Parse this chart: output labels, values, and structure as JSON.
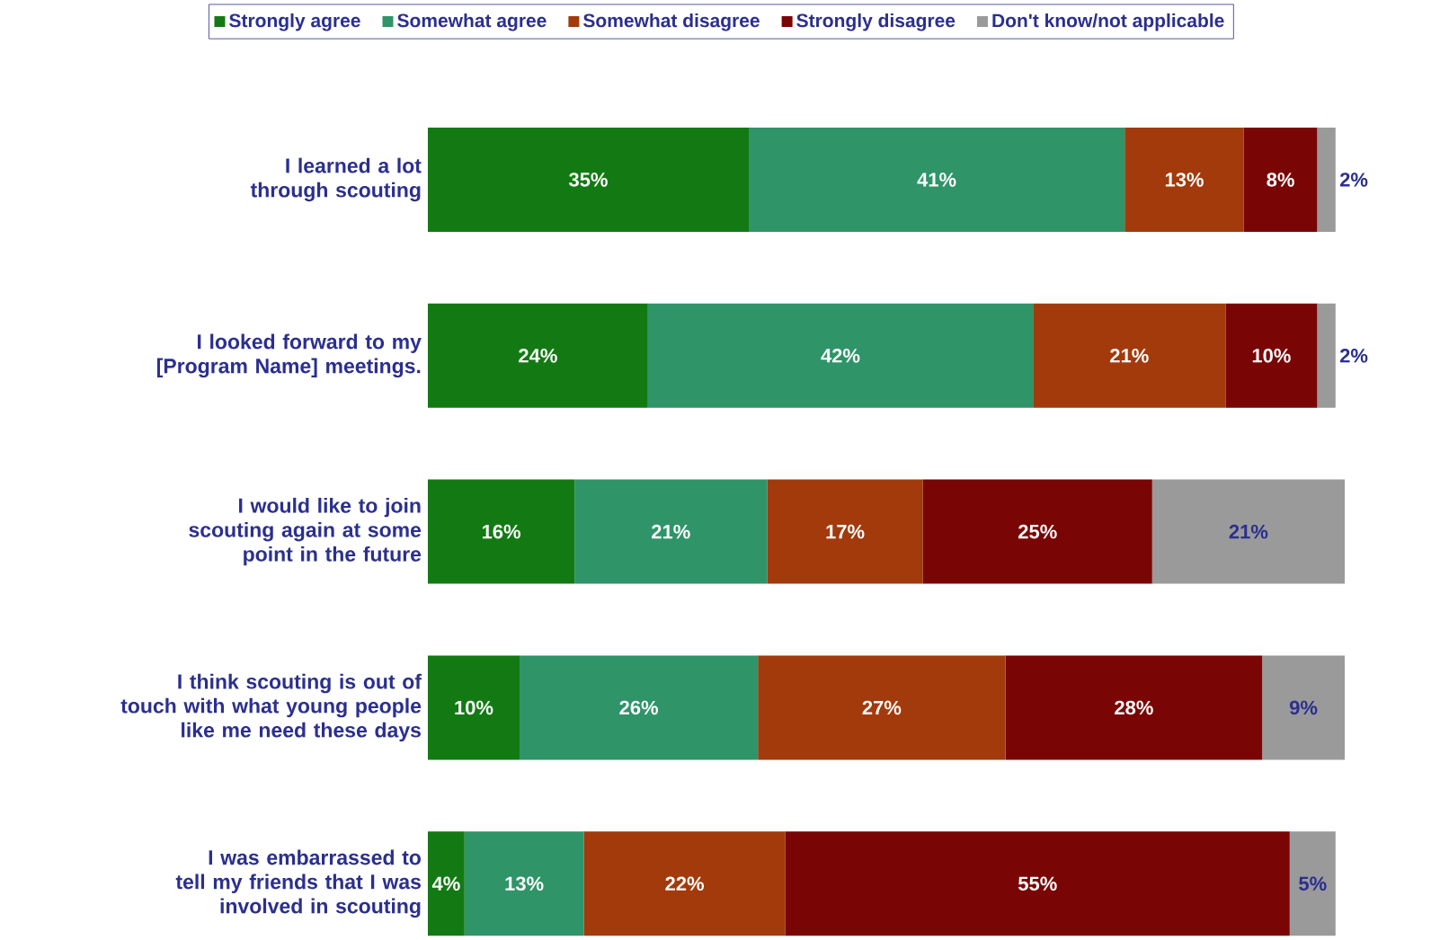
{
  "chart_data": {
    "type": "bar",
    "orientation": "horizontal",
    "stacked": true,
    "legend": "top",
    "categories": [
      "I learned a lot through scouting",
      "I looked forward to my [Program Name] meetings.",
      "I would like to join scouting again at some point in the future",
      "I think scouting is out of touch with what young people like me need these days",
      "I was embarrassed to tell my friends that I was involved in scouting"
    ],
    "series": [
      {
        "name": "Strongly agree",
        "color": "#137a13",
        "values": [
          35,
          24,
          16,
          10,
          4
        ],
        "value_labels": [
          "35%",
          "24%",
          "16%",
          "10%",
          "4%"
        ]
      },
      {
        "name": "Somewhat agree",
        "color": "#2f9468",
        "values": [
          41,
          42,
          21,
          26,
          13
        ],
        "value_labels": [
          "41%",
          "42%",
          "21%",
          "26%",
          "13%"
        ]
      },
      {
        "name": "Somewhat disagree",
        "color": "#a33a0b",
        "values": [
          13,
          21,
          17,
          27,
          22
        ],
        "value_labels": [
          "13%",
          "21%",
          "17%",
          "27%",
          "22%"
        ]
      },
      {
        "name": "Strongly disagree",
        "color": "#7a0505",
        "values": [
          8,
          10,
          25,
          28,
          55
        ],
        "value_labels": [
          "8%",
          "10%",
          "25%",
          "28%",
          "55%"
        ]
      },
      {
        "name": "Don't know/not applicable",
        "color": "#9a9a9a",
        "values": [
          2,
          2,
          21,
          9,
          5
        ],
        "value_labels": [
          "2%",
          "2%",
          "21%",
          "9%",
          "5%"
        ]
      }
    ]
  }
}
